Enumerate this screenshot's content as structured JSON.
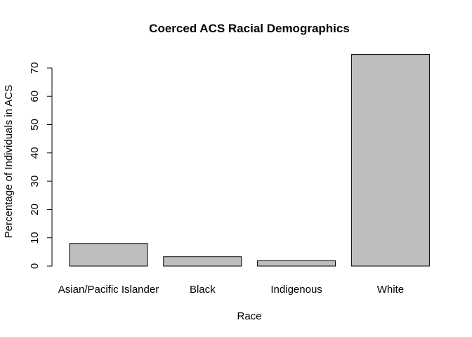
{
  "chart_data": {
    "type": "bar",
    "title": "Coerced ACS Racial Demographics",
    "xlabel": "Race",
    "ylabel": "Percentage of Individuals in ACS",
    "categories": [
      "Asian/Pacific Islander",
      "Black",
      "Indigenous",
      "White"
    ],
    "values": [
      8.0,
      3.3,
      1.9,
      74.8
    ],
    "ylim": [
      0,
      75
    ],
    "yticks": [
      0,
      10,
      20,
      30,
      40,
      50,
      60,
      70
    ],
    "ytick_labels": [
      "0",
      "10",
      "20",
      "30",
      "40",
      "50",
      "60",
      "70"
    ],
    "bar_color": "#bebebe",
    "grid": false,
    "legend": "none"
  }
}
